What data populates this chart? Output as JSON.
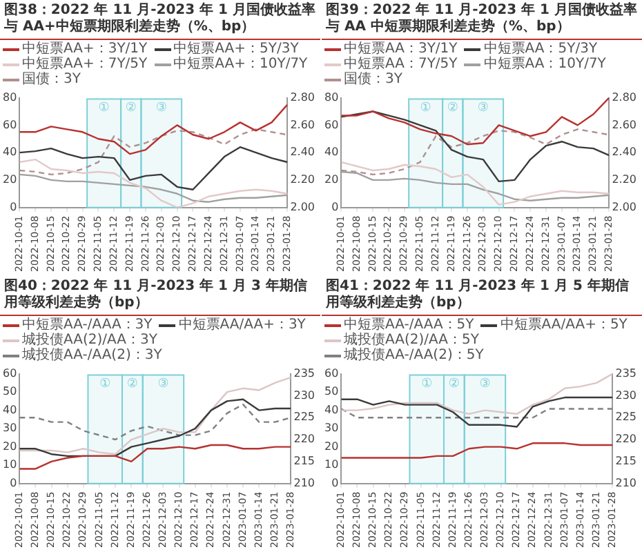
{
  "chart_data": [
    {
      "type": "line",
      "title": "图38：2022 年 11 月-2023 年 1 月国债收益率与 AA+中短票期限利差走势（%、bp）",
      "legend": "top",
      "marker": "none",
      "grid": false,
      "x": [
        "2022-10-01",
        "2022-10-08",
        "2022-10-15",
        "2022-10-22",
        "2022-10-29",
        "2022-11-05",
        "2022-11-12",
        "2022-11-19",
        "2022-11-26",
        "2022-12-03",
        "2022-12-10",
        "2022-12-17",
        "2022-12-24",
        "2022-12-31",
        "2023-01-07",
        "2023-01-14",
        "2023-01-21",
        "2023-01-28"
      ],
      "xlim": [
        "2022-10-01",
        "2023-01-28"
      ],
      "xticks": [
        "2022-10-01",
        "2022-10-08",
        "2022-10-15",
        "2022-10-22",
        "2022-10-29",
        "2022-11-05",
        "2022-11-12",
        "2022-11-19",
        "2022-11-26",
        "2022-12-03",
        "2022-12-10",
        "2022-12-17",
        "2022-12-24",
        "2022-12-31",
        "2023-01-07",
        "2023-01-14",
        "2023-01-21",
        "2023-01-28"
      ],
      "ylim": [
        0,
        80
      ],
      "yticks": [
        0,
        20,
        40,
        60,
        80
      ],
      "y2lim": [
        2,
        2.8
      ],
      "y2ticks": [
        {
          "value": 2,
          "label": "2.00"
        },
        {
          "value": 2.2,
          "label": "2.20"
        },
        {
          "value": 2.4,
          "label": "2.40"
        },
        {
          "value": 2.6,
          "label": "2.60"
        },
        {
          "value": 2.8,
          "label": "2.80"
        }
      ],
      "bands": [
        {
          "axis": "x",
          "from": "2022-10-31",
          "to": "2022-11-15",
          "label": "①",
          "color": "#7ccfd8"
        },
        {
          "axis": "x",
          "from": "2022-11-15",
          "to": "2022-11-24",
          "label": "②",
          "color": "#7ccfd8"
        },
        {
          "axis": "x",
          "from": "2022-11-24",
          "to": "2022-12-12",
          "label": "③",
          "color": "#7ccfd8"
        }
      ],
      "series": [
        {
          "name": "中短票AA+：3Y/1Y",
          "color": "#b8312f",
          "values": [
            55,
            55,
            59,
            57,
            55,
            50,
            48,
            39,
            42,
            52,
            60,
            53,
            50,
            55,
            62,
            56,
            62,
            75
          ]
        },
        {
          "name": "中短票AA+：5Y/3Y",
          "color": "#3a3a3a",
          "values": [
            40,
            41,
            43,
            39,
            36,
            37,
            36,
            20,
            23,
            24,
            15,
            13,
            25,
            37,
            44,
            40,
            36,
            33
          ]
        },
        {
          "name": "中短票AA+：7Y/5Y",
          "color": "#e3c9c9",
          "values": [
            33,
            35,
            28,
            27,
            25,
            26,
            25,
            18,
            14,
            5,
            0,
            3,
            8,
            10,
            12,
            13,
            12,
            10
          ]
        },
        {
          "name": "中短票AA+：10Y/7Y",
          "color": "#a0a0a0",
          "values": [
            24,
            23,
            20,
            19,
            19,
            18,
            17,
            16,
            15,
            13,
            10,
            5,
            4,
            6,
            7,
            7,
            8,
            9
          ]
        },
        {
          "name": "国债：3Y",
          "color": "#b09090",
          "line_style": "dashed",
          "axis": "y2",
          "values": [
            2.27,
            2.26,
            2.24,
            2.25,
            2.28,
            2.33,
            2.52,
            2.44,
            2.47,
            2.52,
            2.56,
            2.55,
            2.51,
            2.46,
            2.53,
            2.57,
            2.55,
            2.53
          ]
        }
      ]
    },
    {
      "type": "line",
      "title": "图39：2022 年 11 月-2023 年 1 月国债收益率与 AA 中短票期限利差走势（%、bp）",
      "legend": "top",
      "marker": "none",
      "grid": false,
      "x": [
        "2022-10-01",
        "2022-10-08",
        "2022-10-15",
        "2022-10-22",
        "2022-10-29",
        "2022-11-05",
        "2022-11-12",
        "2022-11-19",
        "2022-11-26",
        "2022-12-03",
        "2022-12-10",
        "2022-12-17",
        "2022-12-24",
        "2022-12-31",
        "2023-01-07",
        "2023-01-14",
        "2023-01-21",
        "2023-01-28"
      ],
      "xlim": [
        "2022-10-01",
        "2023-01-28"
      ],
      "xticks": [
        "2022-10-01",
        "2022-10-08",
        "2022-10-15",
        "2022-10-22",
        "2022-10-29",
        "2022-11-05",
        "2022-11-12",
        "2022-11-19",
        "2022-11-26",
        "2022-12-03",
        "2022-12-10",
        "2022-12-17",
        "2022-12-24",
        "2022-12-31",
        "2023-01-07",
        "2023-01-14",
        "2023-01-21",
        "2023-01-28"
      ],
      "ylim": [
        0,
        80
      ],
      "yticks": [
        0,
        20,
        40,
        60,
        80
      ],
      "y2lim": [
        2,
        2.8
      ],
      "y2ticks": [
        {
          "value": 2,
          "label": "2.00"
        },
        {
          "value": 2.2,
          "label": "2.20"
        },
        {
          "value": 2.4,
          "label": "2.40"
        },
        {
          "value": 2.6,
          "label": "2.60"
        },
        {
          "value": 2.8,
          "label": "2.80"
        }
      ],
      "bands": [
        {
          "axis": "x",
          "from": "2022-10-31",
          "to": "2022-11-15",
          "label": "①",
          "color": "#7ccfd8"
        },
        {
          "axis": "x",
          "from": "2022-11-15",
          "to": "2022-11-24",
          "label": "②",
          "color": "#7ccfd8"
        },
        {
          "axis": "x",
          "from": "2022-11-24",
          "to": "2022-12-12",
          "label": "③",
          "color": "#7ccfd8"
        }
      ],
      "series": [
        {
          "name": "中短票AA：3Y/1Y",
          "color": "#b8312f",
          "values": [
            67,
            67,
            70,
            65,
            62,
            57,
            54,
            52,
            46,
            47,
            60,
            56,
            52,
            55,
            66,
            60,
            68,
            80
          ]
        },
        {
          "name": "中短票AA：5Y/3Y",
          "color": "#3a3a3a",
          "values": [
            66,
            68,
            70,
            67,
            64,
            60,
            56,
            42,
            37,
            35,
            19,
            20,
            35,
            45,
            48,
            44,
            43,
            38
          ]
        },
        {
          "name": "中短票AA：7Y/5Y",
          "color": "#e3c9c9",
          "values": [
            33,
            30,
            27,
            28,
            31,
            30,
            28,
            22,
            24,
            15,
            2,
            4,
            8,
            10,
            12,
            11,
            11,
            10
          ]
        },
        {
          "name": "中短票AA：10Y/7Y",
          "color": "#a0a0a0",
          "values": [
            26,
            25,
            20,
            20,
            21,
            20,
            18,
            17,
            17,
            13,
            10,
            6,
            5,
            6,
            7,
            7,
            8,
            9
          ]
        },
        {
          "name": "国债：3Y",
          "color": "#b09090",
          "line_style": "dashed",
          "axis": "y2",
          "values": [
            2.27,
            2.26,
            2.24,
            2.25,
            2.28,
            2.33,
            2.52,
            2.44,
            2.47,
            2.52,
            2.56,
            2.55,
            2.51,
            2.46,
            2.53,
            2.57,
            2.55,
            2.53
          ]
        }
      ]
    },
    {
      "type": "line",
      "title": "图40：2022 年 11 月-2023 年 1 月 3 年期信用等级利差走势（bp）",
      "legend": "top",
      "marker": "none",
      "grid": false,
      "x": [
        "2022-10-01",
        "2022-10-08",
        "2022-10-15",
        "2022-10-22",
        "2022-10-29",
        "2022-11-05",
        "2022-11-12",
        "2022-11-19",
        "2022-11-26",
        "2022-12-03",
        "2022-12-10",
        "2022-12-17",
        "2022-12-24",
        "2022-12-31",
        "2023-01-07",
        "2023-01-14",
        "2023-01-21",
        "2023-01-28"
      ],
      "xlim": [
        "2022-10-01",
        "2023-01-28"
      ],
      "xticks": [
        "2022-10-01",
        "2022-10-08",
        "2022-10-15",
        "2022-10-22",
        "2022-10-29",
        "2022-11-05",
        "2022-11-12",
        "2022-11-19",
        "2022-11-26",
        "2022-12-03",
        "2022-12-10",
        "2022-12-17",
        "2022-12-24",
        "2022-12-31",
        "2023-01-07",
        "2023-01-14",
        "2023-01-21",
        "2023-01-28"
      ],
      "ylim": [
        0,
        60
      ],
      "yticks": [
        0,
        10,
        20,
        30,
        40,
        50,
        60
      ],
      "y2lim": [
        210,
        235
      ],
      "y2ticks": [
        210,
        215,
        220,
        225,
        230,
        235
      ],
      "bands": [
        {
          "axis": "x",
          "from": "2022-10-31",
          "to": "2022-11-15",
          "label": "①",
          "color": "#7ccfd8"
        },
        {
          "axis": "x",
          "from": "2022-11-15",
          "to": "2022-11-24",
          "label": "②",
          "color": "#7ccfd8"
        },
        {
          "axis": "x",
          "from": "2022-11-24",
          "to": "2022-12-12",
          "label": "③",
          "color": "#7ccfd8"
        }
      ],
      "series": [
        {
          "name": "中短票AA-/AAA：3Y",
          "color": "#b8312f",
          "values": [
            8,
            8,
            12,
            14,
            15,
            15,
            15,
            12,
            19,
            19,
            20,
            19,
            21,
            21,
            19,
            19,
            20,
            20
          ]
        },
        {
          "name": "中短票AA/AA+：3Y",
          "color": "#3a3a3a",
          "values": [
            19,
            19,
            16,
            15,
            15,
            15,
            15,
            20,
            22,
            24,
            26,
            30,
            40,
            45,
            46,
            40,
            41,
            41
          ]
        },
        {
          "name": "城投债AA(2)/AA：3Y",
          "color": "#dcc6c6",
          "values": [
            18,
            18,
            18,
            17,
            19,
            17,
            16,
            24,
            27,
            30,
            28,
            28,
            40,
            50,
            52,
            51,
            55,
            58
          ]
        },
        {
          "name": "城投债AA-/AA(2)：3Y",
          "color": "#808080",
          "line_style": "dashed",
          "axis": "y2",
          "values": [
            225,
            225,
            224,
            224,
            222,
            221,
            220,
            222,
            223,
            222,
            221,
            221,
            222,
            226,
            228,
            224,
            224,
            225
          ]
        }
      ]
    },
    {
      "type": "line",
      "title": "图41：2022 年 11 月-2023 年 1 月 5 年期信用等级利差走势（bp）",
      "legend": "top",
      "marker": "none",
      "grid": false,
      "x": [
        "2022-10-01",
        "2022-10-08",
        "2022-10-15",
        "2022-10-22",
        "2022-10-29",
        "2022-11-05",
        "2022-11-12",
        "2022-11-19",
        "2022-11-26",
        "2022-12-03",
        "2022-12-10",
        "2022-12-17",
        "2022-12-24",
        "2022-12-31",
        "2023-01-07",
        "2023-01-14",
        "2023-01-21",
        "2023-01-28"
      ],
      "xlim": [
        "2022-10-01",
        "2023-01-28"
      ],
      "xticks": [
        "2022-10-01",
        "2022-10-08",
        "2022-10-15",
        "2022-10-22",
        "2022-10-29",
        "2022-11-05",
        "2022-11-12",
        "2022-11-19",
        "2022-11-26",
        "2022-12-03",
        "2022-12-10",
        "2022-12-17",
        "2022-12-24",
        "2022-12-31",
        "2023-01-07",
        "2023-01-14",
        "2023-01-21",
        "2023-01-28"
      ],
      "ylim": [
        0,
        60
      ],
      "yticks": [
        0,
        10,
        20,
        30,
        40,
        50,
        60
      ],
      "y2lim": [
        210,
        235
      ],
      "y2ticks": [
        210,
        215,
        220,
        225,
        230,
        235
      ],
      "bands": [
        {
          "axis": "x",
          "from": "2022-10-31",
          "to": "2022-11-15",
          "label": "①",
          "color": "#7ccfd8"
        },
        {
          "axis": "x",
          "from": "2022-11-15",
          "to": "2022-11-24",
          "label": "②",
          "color": "#7ccfd8"
        },
        {
          "axis": "x",
          "from": "2022-11-24",
          "to": "2022-12-12",
          "label": "③",
          "color": "#7ccfd8"
        }
      ],
      "series": [
        {
          "name": "中短票AA-/AAA：5Y",
          "color": "#b8312f",
          "values": [
            14,
            14,
            14,
            14,
            14,
            14,
            15,
            15,
            19,
            20,
            20,
            19,
            22,
            22,
            22,
            21,
            21,
            21
          ]
        },
        {
          "name": "中短票AA/AA+：5Y",
          "color": "#3a3a3a",
          "values": [
            46,
            46,
            43,
            45,
            43,
            43,
            43,
            39,
            32,
            32,
            32,
            31,
            42,
            45,
            47,
            47,
            47,
            47
          ]
        },
        {
          "name": "城投债AA(2)/AA：5Y",
          "color": "#dcc6c6",
          "values": [
            40,
            40,
            41,
            43,
            44,
            44,
            44,
            40,
            38,
            40,
            39,
            38,
            43,
            46,
            52,
            53,
            55,
            60
          ]
        },
        {
          "name": "城投债AA-/AA(2)：5Y",
          "color": "#808080",
          "line_style": "dashed",
          "axis": "y2",
          "values": [
            227,
            225,
            225,
            225,
            225,
            225,
            225,
            225,
            225,
            225,
            225,
            225,
            225,
            227,
            227,
            227,
            227,
            227
          ]
        }
      ]
    }
  ]
}
